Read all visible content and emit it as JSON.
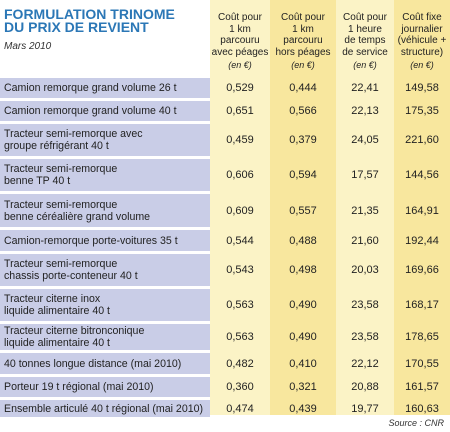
{
  "title_line1": "FORMULATION TRINOME",
  "title_line2": "DU PRIX DE REVIENT",
  "subtitle": "Mars 2010",
  "columns": [
    {
      "lines": [
        "Coût pour",
        "1 km",
        "parcouru",
        "avec péages"
      ],
      "unit": "(en €)"
    },
    {
      "lines": [
        "Coût pour",
        "1 km",
        "parcouru",
        "hors péages"
      ],
      "unit": "(en €)"
    },
    {
      "lines": [
        "Coût pour",
        "1 heure",
        "de temps",
        "de service"
      ],
      "unit": "(en €)"
    },
    {
      "lines": [
        "Coût fixe",
        "journalier",
        "(véhicule +",
        "structure)"
      ],
      "unit": "(en €)"
    }
  ],
  "rows": [
    {
      "label": [
        "Camion remorque grand volume 26 t"
      ],
      "values": [
        "0,529",
        "0,444",
        "22,41",
        "149,58"
      ]
    },
    {
      "label": [
        "Camion remorque grand volume 40 t"
      ],
      "values": [
        "0,651",
        "0,566",
        "22,13",
        "175,35"
      ]
    },
    {
      "label": [
        "Tracteur semi-remorque avec",
        "groupe réfrigérant 40 t"
      ],
      "values": [
        "0,459",
        "0,379",
        "24,05",
        "221,60"
      ]
    },
    {
      "label": [
        "Tracteur semi-remorque",
        "benne TP 40 t"
      ],
      "values": [
        "0,606",
        "0,594",
        "17,57",
        "144,56"
      ]
    },
    {
      "label": [
        "Tracteur semi-remorque",
        "benne céréalière grand volume"
      ],
      "values": [
        "0,609",
        "0,557",
        "21,35",
        "164,91"
      ]
    },
    {
      "label": [
        "Camion-remorque porte-voitures 35 t"
      ],
      "values": [
        "0,544",
        "0,488",
        "21,60",
        "192,44"
      ]
    },
    {
      "label": [
        "Tracteur semi-remorque",
        "chassis porte-conteneur 40 t"
      ],
      "values": [
        "0,543",
        "0,498",
        "20,03",
        "169,66"
      ]
    },
    {
      "label": [
        "Tracteur citerne inox",
        "liquide alimentaire 40 t"
      ],
      "values": [
        "0,563",
        "0,490",
        "23,58",
        "168,17"
      ]
    },
    {
      "label": [
        "Tracteur citerne bitronconique",
        "liquide alimentaire 40 t"
      ],
      "values": [
        "0,563",
        "0,490",
        "23,58",
        "178,65"
      ]
    },
    {
      "label": [
        "40 tonnes longue distance (mai 2010)"
      ],
      "values": [
        "0,482",
        "0,410",
        "22,12",
        "170,55"
      ]
    },
    {
      "label": [
        "Porteur 19 t régional (mai 2010)"
      ],
      "values": [
        "0,360",
        "0,321",
        "20,88",
        "161,57"
      ]
    },
    {
      "label": [
        "Ensemble articulé 40 t régional (mai 2010)"
      ],
      "values": [
        "0,474",
        "0,439",
        "19,77",
        "160,63"
      ]
    }
  ],
  "source": "Source : CNR",
  "colors": {
    "title": "#2b77b6",
    "label_bg": "#c9cde7",
    "col_light": "#fbf3c6",
    "col_dark": "#f8e79e"
  }
}
